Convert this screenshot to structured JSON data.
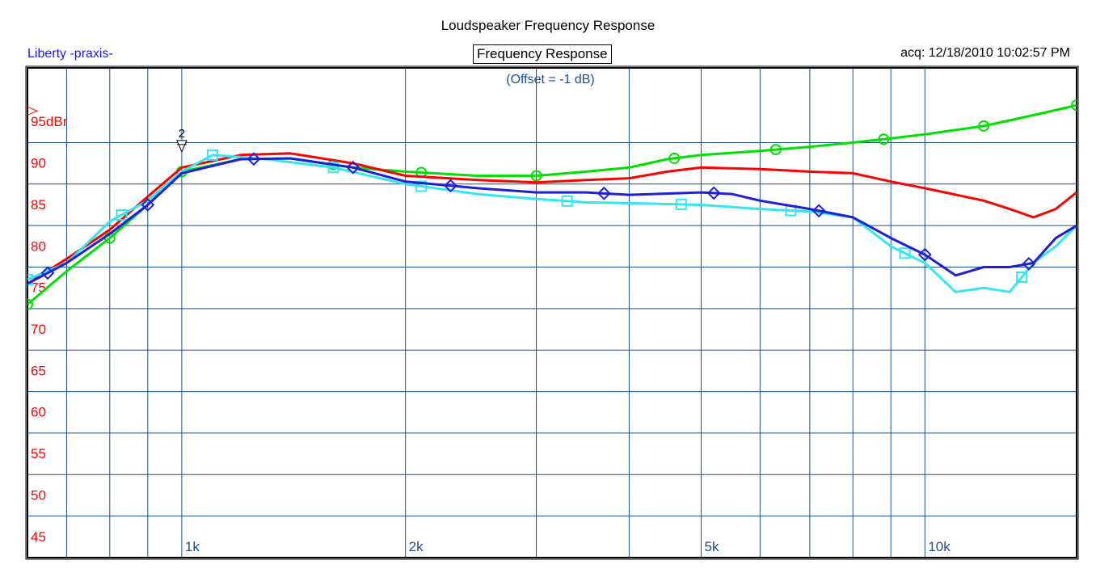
{
  "header": {
    "title": "Loudspeaker Frequency Response",
    "left_label": "Liberty -praxis-",
    "center_box": "Frequency Response",
    "acq": "acq: 12/18/2010 10:02:57 PM"
  },
  "chart_data": {
    "type": "line",
    "title": "Loudspeaker Frequency Response",
    "subtitle": "(Offset = -1 dB)",
    "xscale": "log",
    "xlim": [
      620,
      16000
    ],
    "ylim": [
      42.5,
      101.5
    ],
    "grid": true,
    "y_ticks": [
      {
        "value": 95,
        "label": "95dBr"
      },
      {
        "value": 90,
        "label": "90"
      },
      {
        "value": 85,
        "label": "85"
      },
      {
        "value": 80,
        "label": "80"
      },
      {
        "value": 75,
        "label": "75"
      },
      {
        "value": 70,
        "label": "70"
      },
      {
        "value": 65,
        "label": "65"
      },
      {
        "value": 60,
        "label": "60"
      },
      {
        "value": 55,
        "label": "55"
      },
      {
        "value": 50,
        "label": "50"
      },
      {
        "value": 45,
        "label": "45"
      }
    ],
    "x_gridlines": [
      700,
      800,
      900,
      1000,
      2000,
      3000,
      4000,
      5000,
      6000,
      7000,
      8000,
      9000,
      10000
    ],
    "x_tick_labels": [
      {
        "value": 1000,
        "label": "1k"
      },
      {
        "value": 2000,
        "label": "2k"
      },
      {
        "value": 5000,
        "label": "5k"
      },
      {
        "value": 10000,
        "label": "10k"
      }
    ],
    "cursor_marker": {
      "x": 1000,
      "y": 91,
      "label": "2"
    },
    "series": [
      {
        "color": "#00e000",
        "marker": "circle",
        "x": [
          620,
          700,
          800,
          900,
          1000,
          1200,
          1400,
          1700,
          2000,
          2500,
          3000,
          3500,
          4000,
          4500,
          5000,
          6000,
          7000,
          8000,
          9000,
          10000,
          12000,
          14000,
          16000
        ],
        "y": [
          73,
          77,
          81,
          85,
          89,
          90.5,
          90.6,
          89.5,
          89,
          88.5,
          88.5,
          89,
          89.5,
          90.5,
          91,
          91.5,
          92,
          92.5,
          93,
          93.5,
          94.5,
          95.8,
          97
        ],
        "marker_x": [
          620,
          800,
          1000,
          1600,
          2100,
          3000,
          4600,
          6300,
          8800,
          12000,
          16000
        ]
      },
      {
        "color": "#ff0000",
        "marker": "none",
        "x": [
          620,
          700,
          800,
          900,
          1000,
          1200,
          1400,
          1700,
          2000,
          2500,
          3000,
          3500,
          4000,
          4500,
          5000,
          6000,
          7000,
          8000,
          9000,
          10000,
          12000,
          13000,
          14000,
          15000,
          16000
        ],
        "y": [
          75.5,
          78.5,
          82,
          86,
          89.5,
          91,
          91.2,
          90,
          88.5,
          88,
          87.7,
          88,
          88.2,
          89,
          89.5,
          89.3,
          89,
          88.8,
          87.8,
          87,
          85.5,
          84.5,
          83.5,
          84.5,
          86.5
        ],
        "marker_x": []
      },
      {
        "color": "#33e6f0",
        "marker": "square",
        "x": [
          620,
          700,
          800,
          900,
          1000,
          1100,
          1300,
          1600,
          2000,
          2500,
          3000,
          3500,
          4000,
          5000,
          6000,
          7000,
          8000,
          9000,
          10000,
          11000,
          12000,
          13000,
          14000,
          15000,
          16000
        ],
        "y": [
          76,
          78,
          83,
          85.5,
          89,
          91,
          90.5,
          89.5,
          87.5,
          86.3,
          85.7,
          85.3,
          85.2,
          85,
          84.5,
          84.2,
          83.5,
          80,
          78,
          74.5,
          75,
          74.5,
          78,
          80,
          82.5
        ],
        "marker_x": [
          620,
          830,
          1100,
          1600,
          2100,
          3300,
          4700,
          6600,
          9400,
          13500
        ]
      },
      {
        "color": "#1f1fd6",
        "marker": "diamond",
        "x": [
          620,
          700,
          800,
          900,
          1000,
          1200,
          1400,
          1700,
          2000,
          2500,
          3000,
          3500,
          4000,
          5000,
          5500,
          6000,
          7000,
          8000,
          9000,
          10000,
          11000,
          12000,
          13000,
          14000,
          15000,
          16000
        ],
        "y": [
          75.5,
          78,
          81.5,
          85,
          88.8,
          90.5,
          90.6,
          89.5,
          87.8,
          87,
          86.5,
          86.5,
          86.2,
          86.5,
          86.3,
          85.5,
          84.5,
          83.5,
          81,
          79,
          76.5,
          77.5,
          77.5,
          78,
          81,
          82.5
        ],
        "marker_x": [
          660,
          900,
          1250,
          1700,
          2300,
          3700,
          5200,
          7200,
          10000,
          13800
        ]
      }
    ]
  },
  "colors": {
    "grid": "#1a4f8f",
    "frame": "#000000",
    "tick_label": "#ff0000",
    "subtitle": "#1a4f8f",
    "x_label": "#1a4f8f",
    "left_label": "#1a1ae6"
  }
}
